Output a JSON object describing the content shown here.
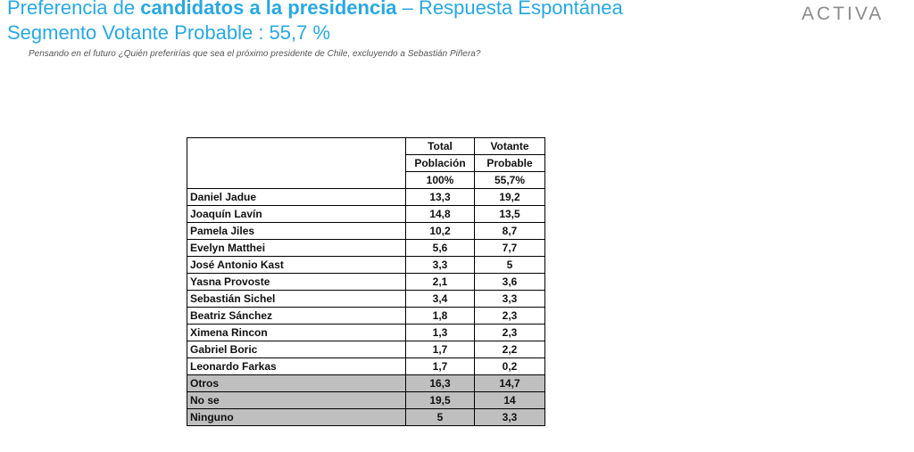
{
  "header": {
    "title_part1": "Preferencia de ",
    "title_bold": "candidatos a la presidencia",
    "title_part2": " – Respuesta Espontánea",
    "subtitle": "Segmento Votante Probable : 55,7 %",
    "question": "Pensando en el futuro ¿Quién preferirías que sea el próximo presidente de Chile, excluyendo a Sebastián Piñera?",
    "logo": "ACTIVA"
  },
  "chart_data": {
    "type": "table",
    "columns": [
      {
        "line1": "Total",
        "line2": "Población",
        "base": "100%"
      },
      {
        "line1": "Votante",
        "line2": "Probable",
        "base": "55,7%"
      }
    ],
    "rows": [
      {
        "name": "Daniel Jadue",
        "total": "13,3",
        "votante": "19,2",
        "shaded": false
      },
      {
        "name": "Joaquín Lavín",
        "total": "14,8",
        "votante": "13,5",
        "shaded": false
      },
      {
        "name": "Pamela Jiles",
        "total": "10,2",
        "votante": "8,7",
        "shaded": false
      },
      {
        "name": "Evelyn Matthei",
        "total": "5,6",
        "votante": "7,7",
        "shaded": false
      },
      {
        "name": "José Antonio Kast",
        "total": "3,3",
        "votante": "5",
        "shaded": false
      },
      {
        "name": "Yasna Provoste",
        "total": "2,1",
        "votante": "3,6",
        "shaded": false
      },
      {
        "name": "Sebastián Sichel",
        "total": "3,4",
        "votante": "3,3",
        "shaded": false
      },
      {
        "name": "Beatriz Sánchez",
        "total": "1,8",
        "votante": "2,3",
        "shaded": false
      },
      {
        "name": "Ximena Rincon",
        "total": "1,3",
        "votante": "2,3",
        "shaded": false
      },
      {
        "name": "Gabriel Boric",
        "total": "1,7",
        "votante": "2,2",
        "shaded": false
      },
      {
        "name": "Leonardo Farkas",
        "total": "1,7",
        "votante": "0,2",
        "shaded": false
      },
      {
        "name": "Otros",
        "total": "16,3",
        "votante": "14,7",
        "shaded": true
      },
      {
        "name": "No se",
        "total": "19,5",
        "votante": "14",
        "shaded": true
      },
      {
        "name": "Ninguno",
        "total": "5",
        "votante": "3,3",
        "shaded": true
      }
    ],
    "colors": {
      "title": "#29a8e0",
      "shaded_row": "#bfbfbf",
      "logo": "#8c8c8c"
    }
  }
}
